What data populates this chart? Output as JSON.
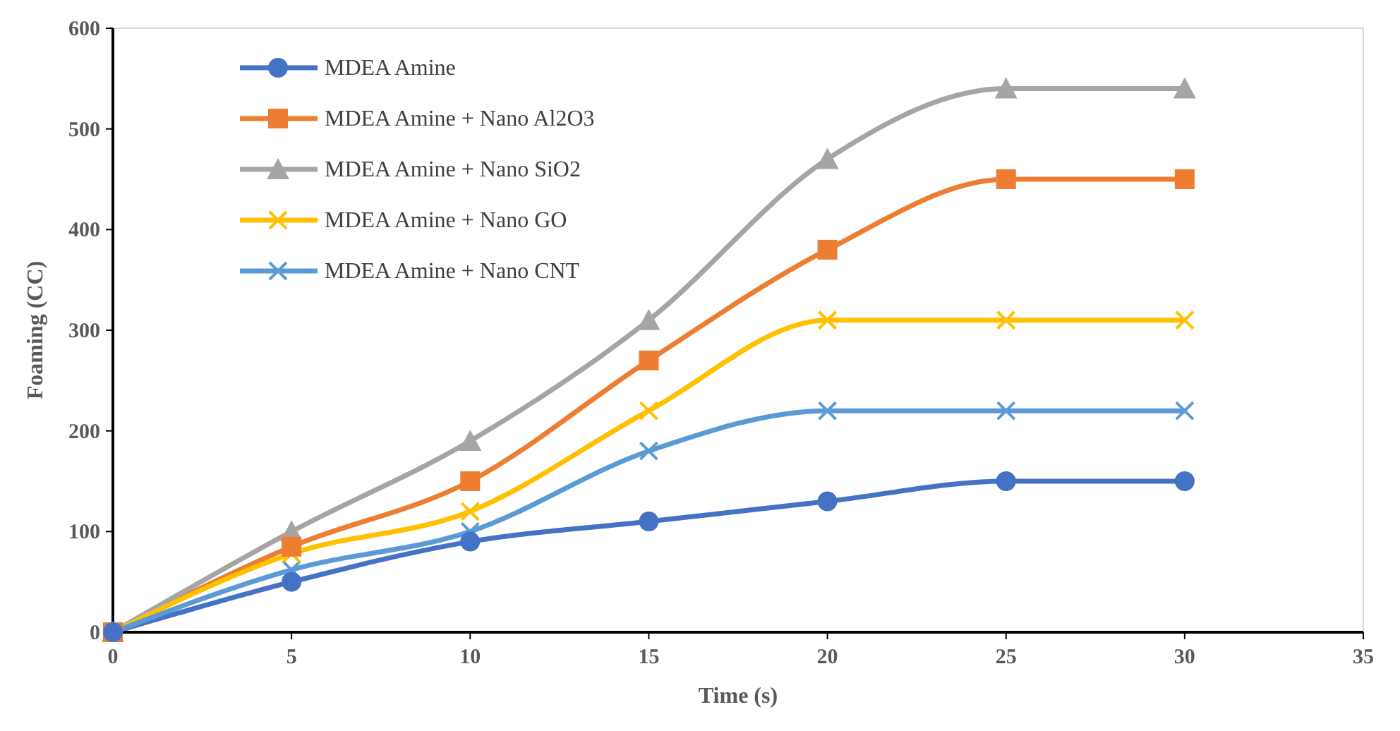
{
  "chart_data": {
    "type": "line",
    "xlabel": "Time (s)",
    "ylabel": "Foaming (CC)",
    "x": [
      0,
      5,
      10,
      15,
      20,
      25,
      30
    ],
    "xlim": [
      0,
      35
    ],
    "xticks": [
      0,
      5,
      10,
      15,
      20,
      25,
      30,
      35
    ],
    "ylim": [
      0,
      600
    ],
    "yticks": [
      0,
      100,
      200,
      300,
      400,
      500,
      600
    ],
    "grid": false,
    "legend": "top left",
    "line_style": "solid",
    "series": [
      {
        "name": "MDEA Amine",
        "color": "#4472c4",
        "marker": "circle",
        "values": [
          0,
          50,
          90,
          110,
          130,
          150,
          150
        ]
      },
      {
        "name": "MDEA Amine + Nano Al2O3",
        "color": "#ed7d31",
        "marker": "square",
        "values": [
          0,
          85,
          150,
          270,
          380,
          450,
          450
        ]
      },
      {
        "name": "MDEA Amine + Nano SiO2",
        "color": "#a5a5a5",
        "marker": "triangle",
        "values": [
          0,
          100,
          190,
          310,
          470,
          540,
          540
        ]
      },
      {
        "name": "MDEA Amine + Nano GO",
        "color": "#ffc000",
        "marker": "cross",
        "values": [
          0,
          78,
          120,
          220,
          310,
          310,
          310
        ]
      },
      {
        "name": "MDEA Amine + Nano CNT",
        "color": "#5b9bd5",
        "marker": "cross",
        "values": [
          0,
          62,
          100,
          180,
          220,
          220,
          220
        ]
      }
    ]
  }
}
